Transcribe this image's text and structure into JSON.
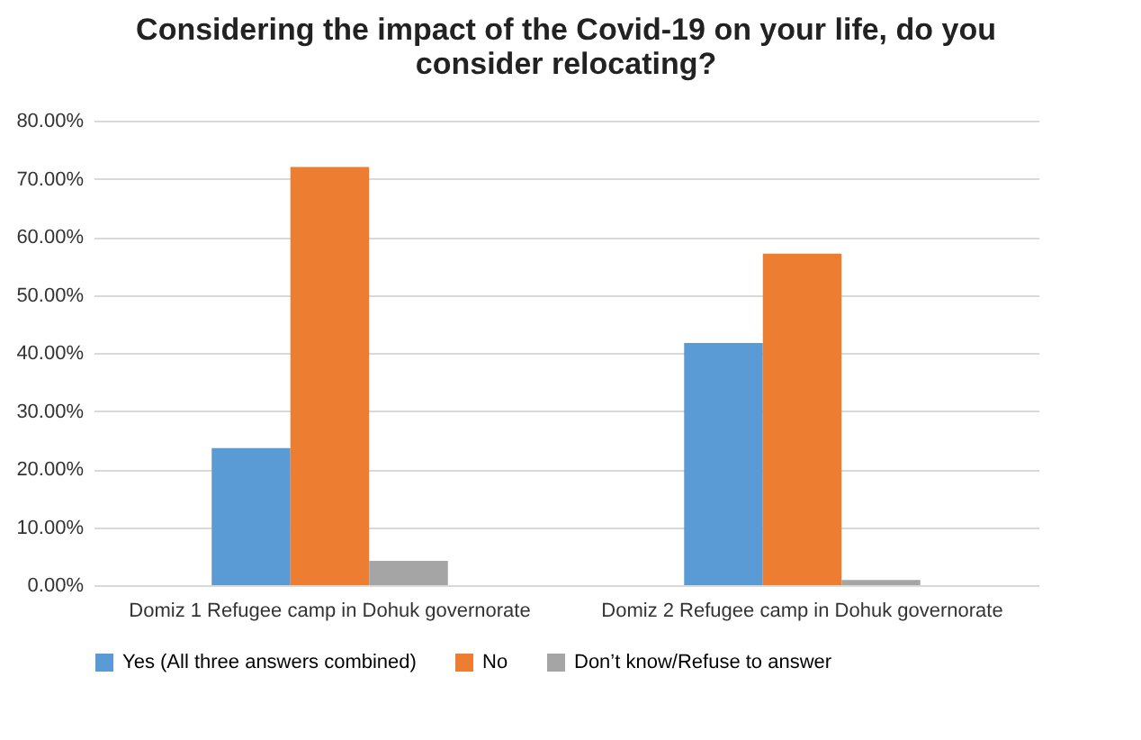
{
  "chart_data": {
    "type": "bar",
    "title": "Considering the impact of the Covid-19 on your life, do you consider relocating?",
    "categories": [
      "Domiz 1 Refugee camp in Dohuk governorate",
      "Domiz 2 Refugee camp in Dohuk governorate"
    ],
    "series": [
      {
        "name": "Yes (All three answers combined)",
        "color": "#5b9bd5",
        "values": [
          23.6,
          41.7
        ]
      },
      {
        "name": "No",
        "color": "#ed7d31",
        "values": [
          72.0,
          57.1
        ]
      },
      {
        "name": "Don’t know/Refuse to answer",
        "color": "#a5a5a5",
        "values": [
          4.2,
          0.9
        ]
      }
    ],
    "ylim": [
      0,
      80
    ],
    "yticks": [
      {
        "value": 0,
        "label": "0.00%"
      },
      {
        "value": 10,
        "label": "10.00%"
      },
      {
        "value": 20,
        "label": "20.00%"
      },
      {
        "value": 30,
        "label": "30.00%"
      },
      {
        "value": 40,
        "label": "40.00%"
      },
      {
        "value": 50,
        "label": "50.00%"
      },
      {
        "value": 60,
        "label": "60.00%"
      },
      {
        "value": 70,
        "label": "70.00%"
      },
      {
        "value": 80,
        "label": "80.00%"
      }
    ],
    "grid": "y",
    "legend": "bottom"
  }
}
